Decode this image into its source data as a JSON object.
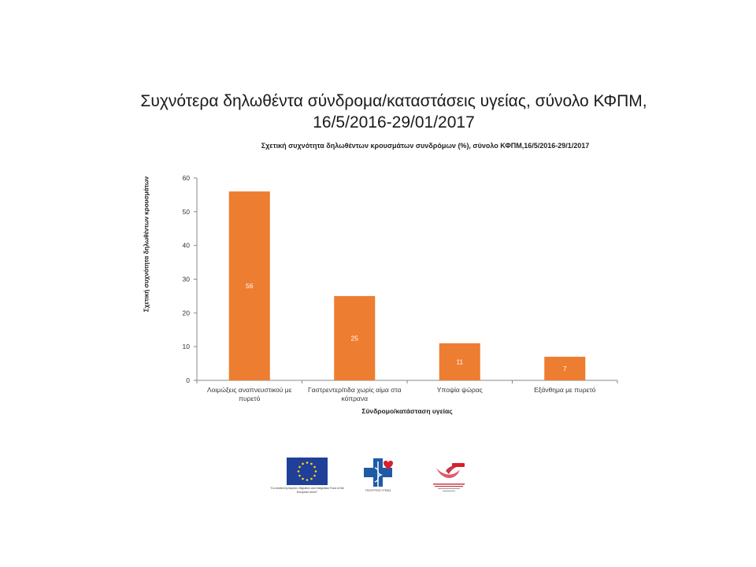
{
  "slide": {
    "title_line1": "Συχνότερα δηλωθέντα σύνδρομα/καταστάσεις υγείας, σύνολο ΚΦΠΜ,",
    "title_line2": "16/5/2016-29/01/2017"
  },
  "chart_data": {
    "type": "bar",
    "title": "Σχετική συχνότητα δηλωθέντων κρουσμάτων συνδρόμων (%), σύνολο ΚΦΠΜ,16/5/2016-29/1/2017",
    "xlabel": "Σύνδρομο/κατάσταση υγείας",
    "ylabel": "Σχετική συχνότητα δηλωθέντων κρουσμάτων",
    "categories": [
      [
        "Λοιμώξεις αναπνευστικού με",
        "πυρετό"
      ],
      [
        "Γαστρεντερίτιδα χωρίς αίμα στα",
        "κόπρανα"
      ],
      [
        "Υποψία ψώρας"
      ],
      [
        "Εξάνθημα με πυρετό"
      ]
    ],
    "values": [
      56,
      25,
      11,
      7
    ],
    "data_labels": [
      "56",
      "25",
      "11",
      "7"
    ],
    "ylim": [
      0,
      60
    ],
    "yticks": [
      0,
      10,
      20,
      30,
      40,
      50,
      60
    ],
    "bar_color": "#ed7d31",
    "grid": false,
    "legend": "none"
  },
  "logos": {
    "eu_caption": "\"Co-funded by Asylum, Migration and Integration Fund of the European Union\"",
    "ministry_caption": "ΥΠΟΥΡΓΕΙΟ ΥΓΕΙΑΣ",
    "eu_color": "#1f3f99",
    "ministry_blue": "#1f5aa6",
    "ministry_red": "#d6202a"
  }
}
